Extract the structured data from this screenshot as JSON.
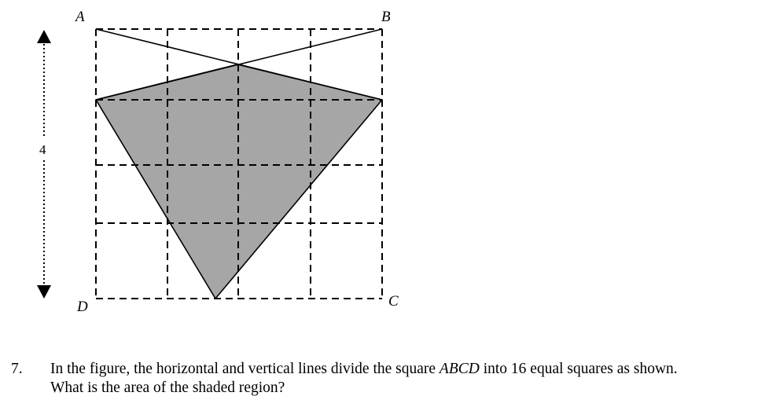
{
  "figure": {
    "vertices": {
      "a": "A",
      "b": "B",
      "c": "C",
      "d": "D"
    },
    "side_length_label": "4",
    "grid_divisions": 4,
    "shaded_fill": "#a6a6a6",
    "line_color": "#000000"
  },
  "question": {
    "number": "7.",
    "line1_pre": "In the figure, the horizontal and vertical lines divide the square ",
    "line1_em": "ABCD",
    "line1_post": " into 16 equal squares as shown.",
    "line2": "What is the area of the shaded region?"
  }
}
